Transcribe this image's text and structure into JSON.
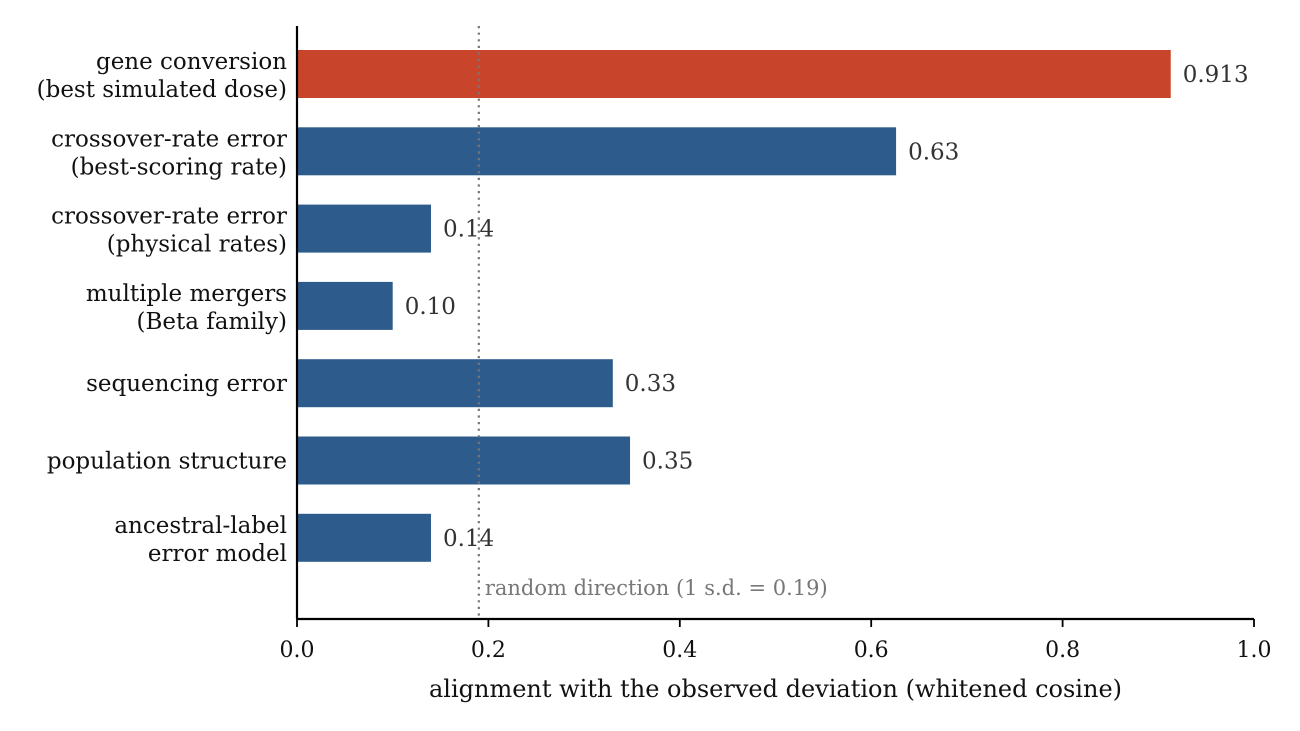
{
  "chart_data": {
    "type": "bar",
    "orientation": "horizontal",
    "categories": [
      [
        "gene conversion",
        "(best simulated dose)"
      ],
      [
        "crossover-rate error",
        "(best-scoring rate)"
      ],
      [
        "crossover-rate error",
        "(physical rates)"
      ],
      [
        "multiple mergers",
        "(Beta family)"
      ],
      [
        "sequencing error"
      ],
      [
        "population structure"
      ],
      [
        "ancestral-label",
        "error model"
      ]
    ],
    "values": [
      0.913,
      0.626,
      0.14,
      0.1,
      0.33,
      0.348,
      0.14
    ],
    "value_labels": [
      "0.913",
      "0.63",
      "0.14",
      "0.10",
      "0.33",
      "0.35",
      "0.14"
    ],
    "bar_colors": [
      "#c8452b",
      "#2d5c8c",
      "#2d5c8c",
      "#2d5c8c",
      "#2d5c8c",
      "#2d5c8c",
      "#2d5c8c"
    ],
    "xlabel": "alignment with the observed deviation (whitened cosine)",
    "xlim": [
      0.0,
      1.0
    ],
    "xticks": [
      0.0,
      0.2,
      0.4,
      0.6,
      0.8,
      1.0
    ],
    "xtick_labels": [
      "0.0",
      "0.2",
      "0.4",
      "0.6",
      "0.8",
      "1.0"
    ],
    "reference_line": {
      "x": 0.19,
      "label": "random direction (1 s.d. = 0.19)",
      "style": "dotted",
      "color": "#777777"
    },
    "grid": false
  }
}
